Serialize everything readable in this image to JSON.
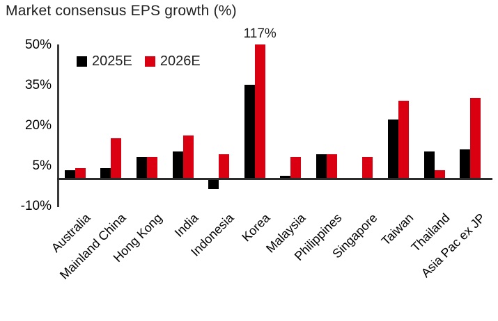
{
  "title": "Market consensus EPS growth (%)",
  "chart_data": {
    "type": "bar",
    "title": "Market consensus EPS growth (%)",
    "categories": [
      "Australia",
      "Mainland China",
      "Hong Kong",
      "India",
      "Indonesia",
      "Korea",
      "Malaysia",
      "Philippines",
      "Singapore",
      "Taiwan",
      "Thailand",
      "Asia Pac ex JP"
    ],
    "series": [
      {
        "name": "2025E",
        "color": "#000000",
        "values": [
          3,
          4,
          8,
          10,
          -4,
          35,
          1,
          9,
          0,
          22,
          10,
          11
        ]
      },
      {
        "name": "2026E",
        "color": "#db0011",
        "values": [
          4,
          15,
          8,
          16,
          9,
          117,
          8,
          9,
          8,
          29,
          3,
          30
        ]
      }
    ],
    "ylabel": "",
    "xlabel": "",
    "ylim": [
      -10,
      50
    ],
    "yticks": [
      50,
      35,
      20,
      5,
      -10
    ],
    "ytick_suffix": "%",
    "grid": false,
    "legend_position": "top-left",
    "annotations": [
      {
        "category": "Korea",
        "series": "2026E",
        "text": "117%"
      }
    ]
  }
}
